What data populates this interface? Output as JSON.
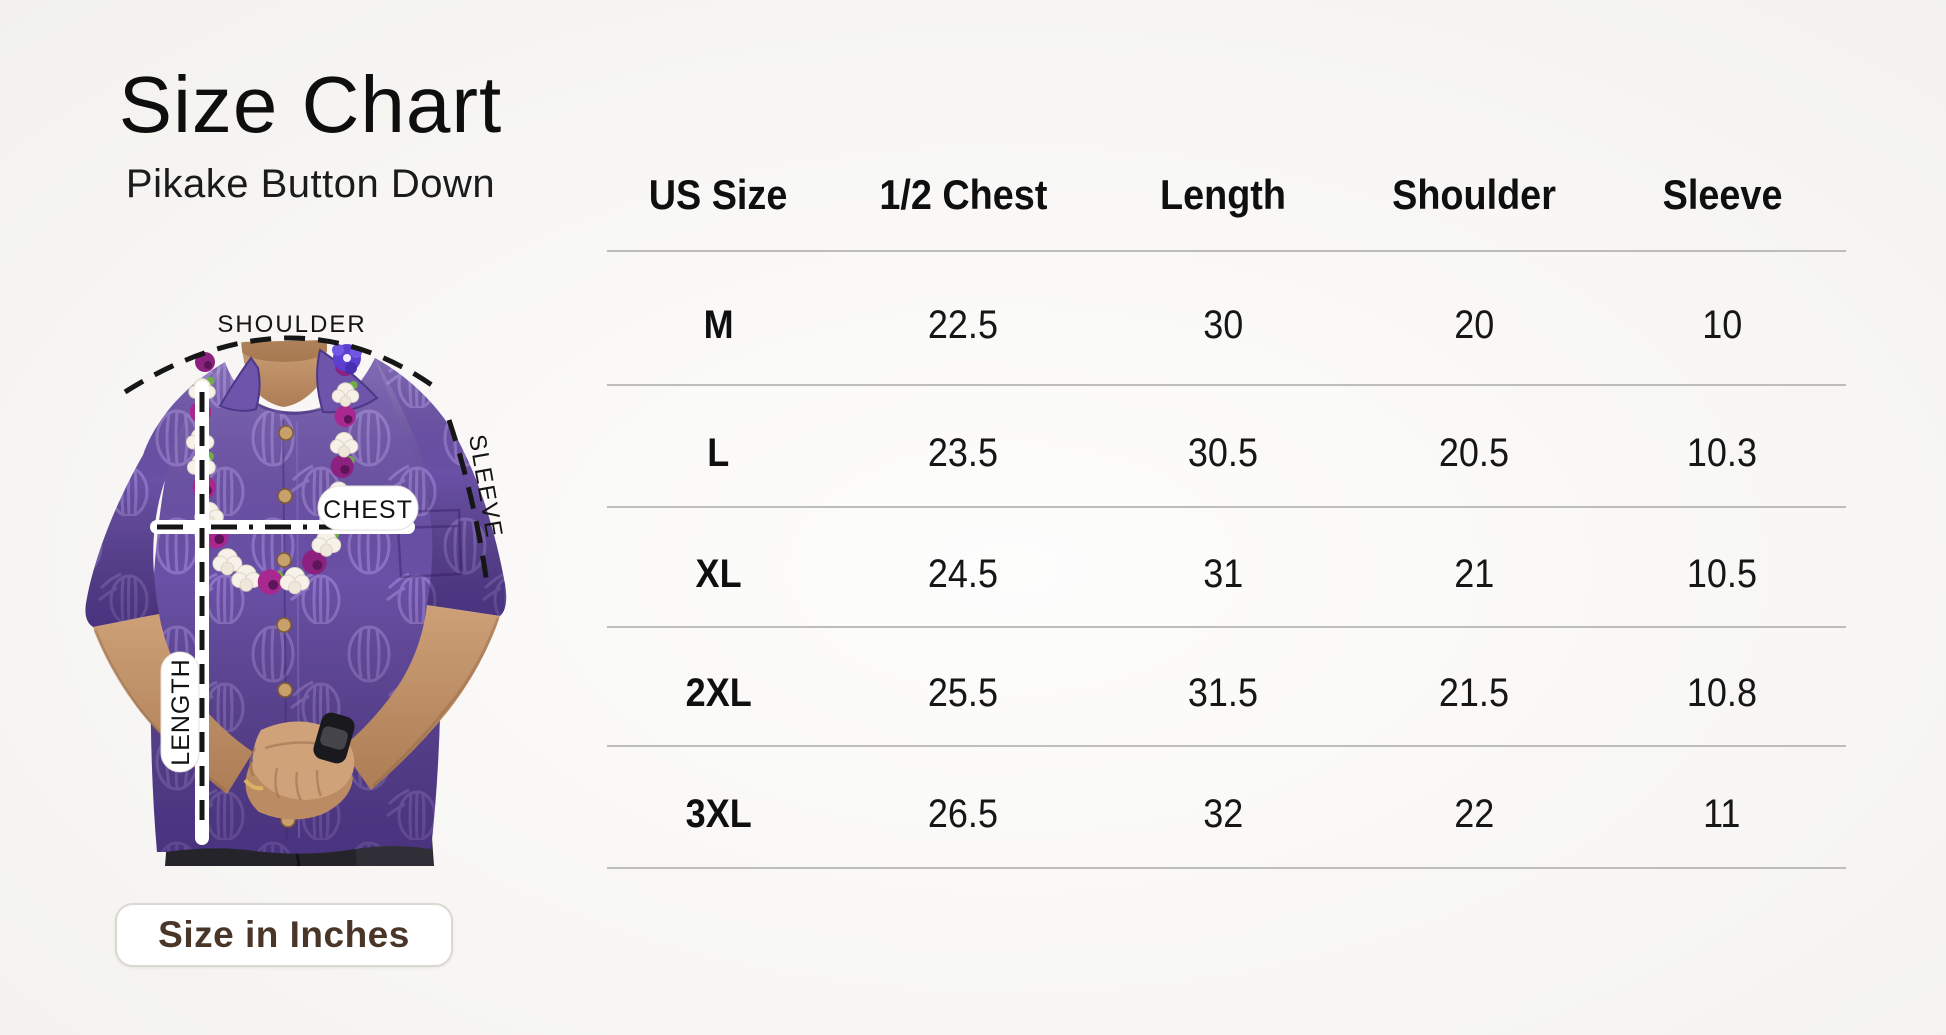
{
  "page": {
    "title": "Size Chart",
    "subtitle": "Pikake Button Down"
  },
  "table": {
    "headers": [
      "US Size",
      "1/2 Chest",
      "Length",
      "Shoulder",
      "Sleeve"
    ],
    "rows": [
      [
        "M",
        "22.5",
        "30",
        "20",
        "10"
      ],
      [
        "L",
        "23.5",
        "30.5",
        "20.5",
        "10.3"
      ],
      [
        "XL",
        "24.5",
        "31",
        "21",
        "10.5"
      ],
      [
        "2XL",
        "25.5",
        "31.5",
        "21.5",
        "10.8"
      ],
      [
        "3XL",
        "26.5",
        "32",
        "22",
        "11"
      ]
    ]
  },
  "diagram": {
    "shoulder_label": "SHOULDER",
    "sleeve_label": "SLEEVE",
    "chest_label": "CHEST",
    "length_label": "LENGTH"
  },
  "footer": {
    "units_label": "Size in Inches"
  },
  "chart_data": {
    "type": "table",
    "title": "Size Chart",
    "subtitle": "Pikake Button Down",
    "units": "inches",
    "columns": [
      "US Size",
      "1/2 Chest",
      "Length",
      "Shoulder",
      "Sleeve"
    ],
    "rows": [
      [
        "M",
        22.5,
        30,
        20,
        10
      ],
      [
        "L",
        23.5,
        30.5,
        20.5,
        10.3
      ],
      [
        "XL",
        24.5,
        31,
        21,
        10.5
      ],
      [
        "2XL",
        25.5,
        31.5,
        21.5,
        10.8
      ],
      [
        "3XL",
        26.5,
        32,
        22,
        11
      ]
    ]
  },
  "colors": {
    "shirt_purple": "#6a50a6",
    "shirt_pattern": "#9a80cf",
    "divider_gray": "#bdbdbd",
    "button_text_brown": "#4a3628",
    "lei_magenta": "#a8288f",
    "lei_white": "#f7f2e9",
    "lei_violet": "#5b3fd1",
    "skin": "#c89b73",
    "jeans": "#26242b"
  }
}
